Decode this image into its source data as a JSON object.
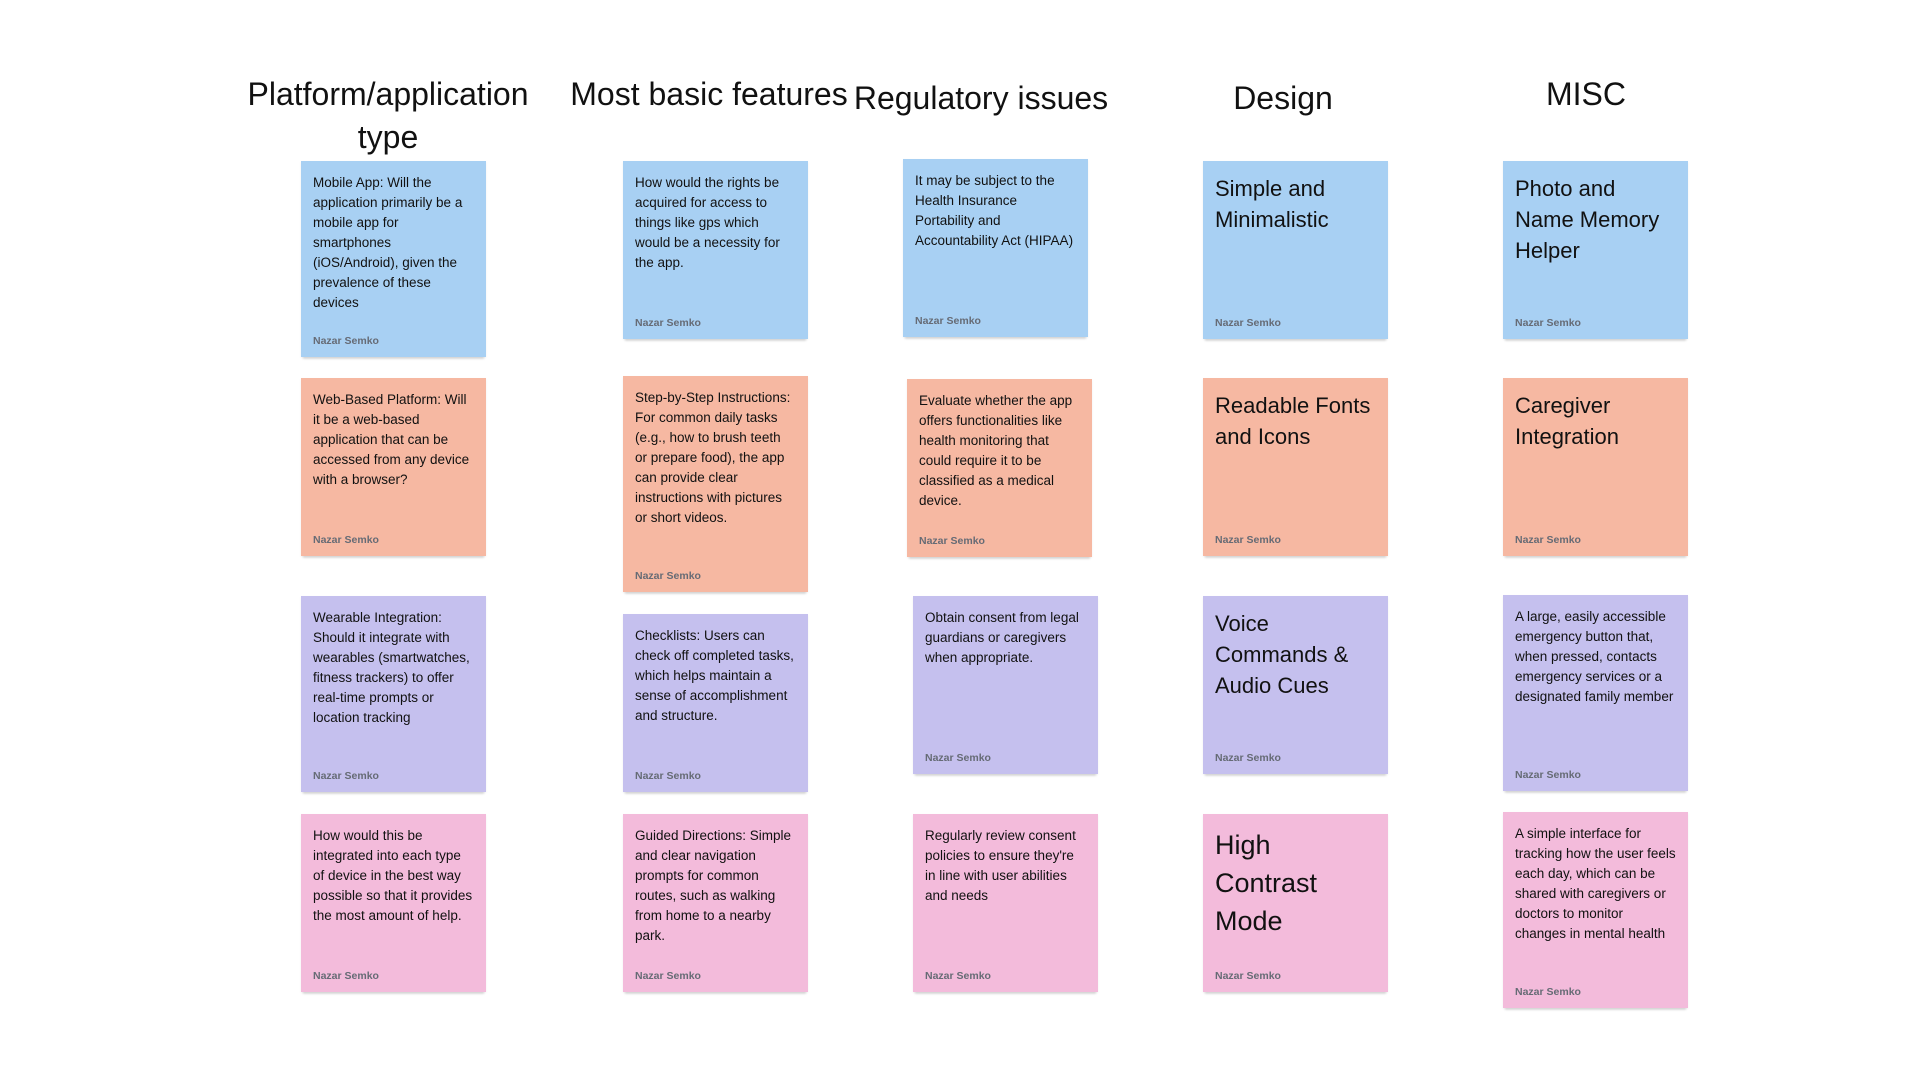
{
  "columns": [
    {
      "header": "Platform/application type",
      "notes": [
        {
          "color": "blue",
          "text": "Mobile App: Will the application primarily be a mobile app for smartphones (iOS/Android), given the prevalence of these devices",
          "author": "Nazar Semko"
        },
        {
          "color": "orange",
          "text": "Web-Based Platform: Will it be a web-based application that can be accessed from any device with a browser?",
          "author": "Nazar Semko"
        },
        {
          "color": "purple",
          "text": "Wearable Integration: Should it integrate with wearables (smartwatches, fitness trackers) to offer real-time prompts or location tracking",
          "author": "Nazar Semko"
        },
        {
          "color": "pink",
          "text": "How would this be integrated into each type of device in the best way possible so that it provides the most amount of help.",
          "author": "Nazar Semko"
        }
      ]
    },
    {
      "header": "Most basic features",
      "notes": [
        {
          "color": "blue",
          "text": "How would the rights be acquired for access to things like gps which would be a necessity for the app.",
          "author": "Nazar Semko"
        },
        {
          "color": "orange",
          "text": "Step-by-Step Instructions: For common daily tasks (e.g., how to brush teeth or prepare food), the app can provide clear instructions with pictures or short videos.",
          "author": "Nazar Semko"
        },
        {
          "color": "purple",
          "text": "Checklists: Users can check off completed tasks, which helps maintain a sense of accomplishment and structure.",
          "author": "Nazar Semko"
        },
        {
          "color": "pink",
          "text": "Guided Directions: Simple and clear navigation prompts for common routes, such as walking from home to a nearby park.",
          "author": "Nazar Semko"
        }
      ]
    },
    {
      "header": "Regulatory issues",
      "notes": [
        {
          "color": "blue",
          "text": "It may be subject to the Health Insurance Portability and Accountability Act (HIPAA)",
          "author": "Nazar Semko"
        },
        {
          "color": "orange",
          "text": "Evaluate whether the app offers functionalities like health monitoring that could require it to be classified as a medical device.",
          "author": "Nazar Semko"
        },
        {
          "color": "purple",
          "text": "Obtain consent from legal guardians or caregivers when appropriate.",
          "author": "Nazar Semko"
        },
        {
          "color": "pink",
          "text": "Regularly review consent policies to ensure they're in line with user abilities and needs",
          "author": "Nazar Semko"
        }
      ]
    },
    {
      "header": "Design",
      "notes": [
        {
          "color": "blue",
          "text": "Simple and Minimalistic",
          "author": "Nazar Semko"
        },
        {
          "color": "orange",
          "text": "Readable Fonts and Icons",
          "author": "Nazar Semko"
        },
        {
          "color": "purple",
          "text": "Voice Commands & Audio Cues",
          "author": "Nazar Semko"
        },
        {
          "color": "pink",
          "text": "High Contrast Mode",
          "author": "Nazar Semko"
        }
      ]
    },
    {
      "header": "MISC",
      "notes": [
        {
          "color": "blue",
          "text": "Photo and Name Memory Helper",
          "author": "Nazar Semko"
        },
        {
          "color": "orange",
          "text": "Caregiver Integration",
          "author": "Nazar Semko"
        },
        {
          "color": "purple",
          "text": "A large, easily accessible emergency button that, when pressed, contacts emergency services or a designated family member",
          "author": "Nazar Semko"
        },
        {
          "color": "pink",
          "text": "A simple interface for tracking how the user feels each day, which can be shared with caregivers or doctors to monitor changes in mental health",
          "author": "Nazar Semko"
        }
      ]
    }
  ]
}
